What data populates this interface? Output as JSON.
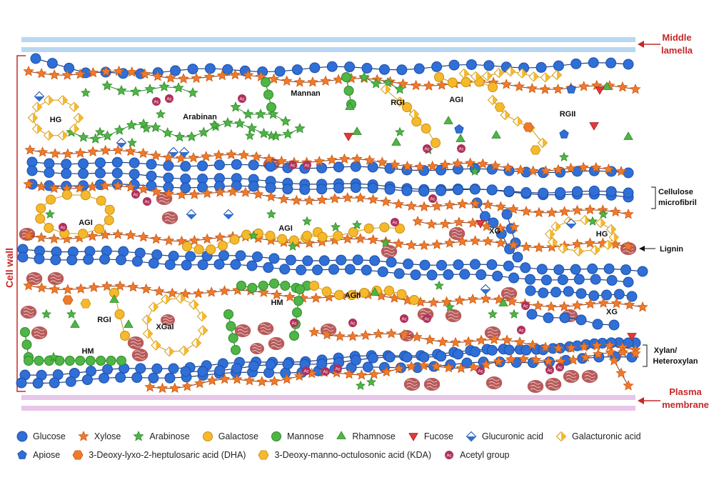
{
  "colors": {
    "glucose": "#2f6fd6",
    "xylose": "#f07a2a",
    "arabinose": "#4fb546",
    "galactose": "#f6b92c",
    "mannose": "#4fb546",
    "rhamnose": "#4fb546",
    "fucose": "#e03a3a",
    "glucuronic": "#2f6fd6",
    "galacturonic": "#f6b92c",
    "apiose": "#2f6fd6",
    "dha": "#f07a2a",
    "kda": "#f6b92c",
    "acetyl": "#b0305a",
    "lignin": "#b85a5a",
    "middle_lamella": "#b9d7f0",
    "plasma_membrane": "#e8c6ea",
    "accent_red": "#c62828"
  },
  "labels": {
    "middle_lamella": [
      "Middle",
      "lamella"
    ],
    "plasma_membrane": [
      "Plasma",
      "membrane"
    ],
    "cell_wall": "Cell wall",
    "cellulose": [
      "Cellulose",
      "microfibril"
    ],
    "lignin": "Lignin",
    "xylan": [
      "Xylan/",
      "Heteroxylan"
    ],
    "regions": {
      "hg1": "HG",
      "arabinan": "Arabinan",
      "mannan": "Mannan",
      "rgi1": "RGI",
      "agi1": "AGI",
      "rgii": "RGII",
      "agi2": "AGI",
      "agi3": "AGI",
      "xg1": "XG",
      "hg2": "HG",
      "hm1": "HM",
      "agii": "AGII",
      "xg2": "XG",
      "rgi2": "RGI",
      "xgal": "XGal",
      "hm2": "HM"
    }
  },
  "acetyl_text": "Ac",
  "legend": {
    "row1": [
      {
        "key": "glucose",
        "icon": "circle-blue",
        "label": "Glucose"
      },
      {
        "key": "xylose",
        "icon": "star-orange",
        "label": "Xylose"
      },
      {
        "key": "arabinose",
        "icon": "star-green",
        "label": "Arabinose"
      },
      {
        "key": "galactose",
        "icon": "circle-yellow",
        "label": "Galactose"
      },
      {
        "key": "mannose",
        "icon": "circle-green",
        "label": "Mannose"
      },
      {
        "key": "rhamnose",
        "icon": "triangle-green",
        "label": "Rhamnose"
      },
      {
        "key": "fucose",
        "icon": "triangle-red",
        "label": "Fucose"
      },
      {
        "key": "glucuronic",
        "icon": "diamond-blue",
        "label": "Glucuronic acid"
      },
      {
        "key": "galacturonic",
        "icon": "diamond-yellow",
        "label": "Galacturonic acid"
      }
    ],
    "row2": [
      {
        "key": "apiose",
        "icon": "pentagon-blue",
        "label": "Apiose"
      },
      {
        "key": "dha",
        "icon": "hexagon-orange",
        "label": "3-Deoxy-lyxo-2-heptulosaric acid (DHA)"
      },
      {
        "key": "kda",
        "icon": "hexagon-yellow",
        "label": "3-Deoxy-manno-octulosonic acid (KDA)"
      },
      {
        "key": "acetyl",
        "icon": "acetyl-circle",
        "label": "Acetyl group"
      }
    ]
  }
}
